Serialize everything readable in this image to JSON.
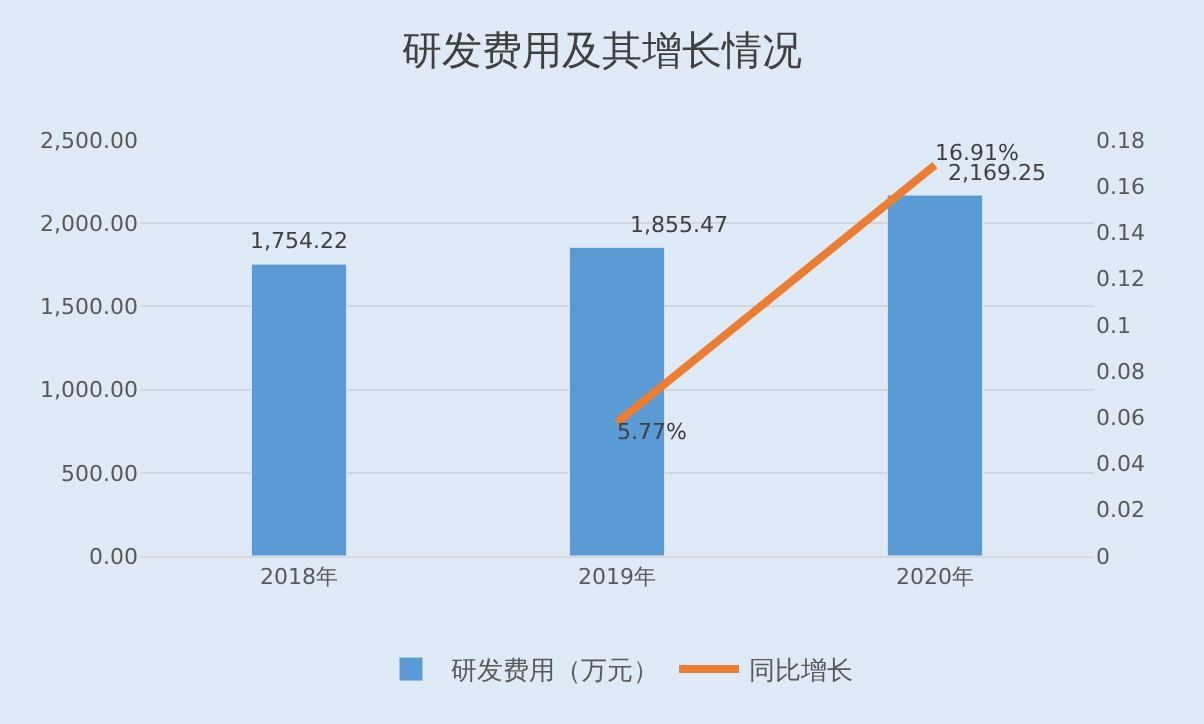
{
  "chart_data": {
    "type": "bar",
    "title": "研发费用及其增长情况",
    "categories": [
      "2018年",
      "2019年",
      "2020年"
    ],
    "series": [
      {
        "name": "研发费用（万元）",
        "color": "#5b9bd5",
        "values": [
          1754.22,
          1855.47,
          2169.25
        ],
        "value_labels": [
          "1,754.22",
          "1,855.47",
          "2,169.25"
        ]
      },
      {
        "name": "同比增长",
        "type": "line",
        "axis": "y2",
        "color": "#ed7d31",
        "values": [
          null,
          0.0577,
          0.1691
        ],
        "value_labels": [
          null,
          "5.77%",
          "16.91%"
        ]
      }
    ],
    "ylim": [
      0,
      2500
    ],
    "yticks": [
      {
        "value": 0,
        "label": "0.00"
      },
      {
        "value": 500,
        "label": "500.00"
      },
      {
        "value": 1000,
        "label": "1,000.00"
      },
      {
        "value": 1500,
        "label": "1,500.00"
      },
      {
        "value": 2000,
        "label": "2,000.00"
      },
      {
        "value": 2500,
        "label": "2,500.00"
      }
    ],
    "y2lim": [
      0,
      0.18
    ],
    "y2ticks": [
      0,
      0.02,
      0.04,
      0.06,
      0.08,
      0.1,
      0.12,
      0.14,
      0.16,
      0.18
    ],
    "grid": "y",
    "legend": "bottom",
    "marker": "none",
    "line_style": "solid"
  }
}
